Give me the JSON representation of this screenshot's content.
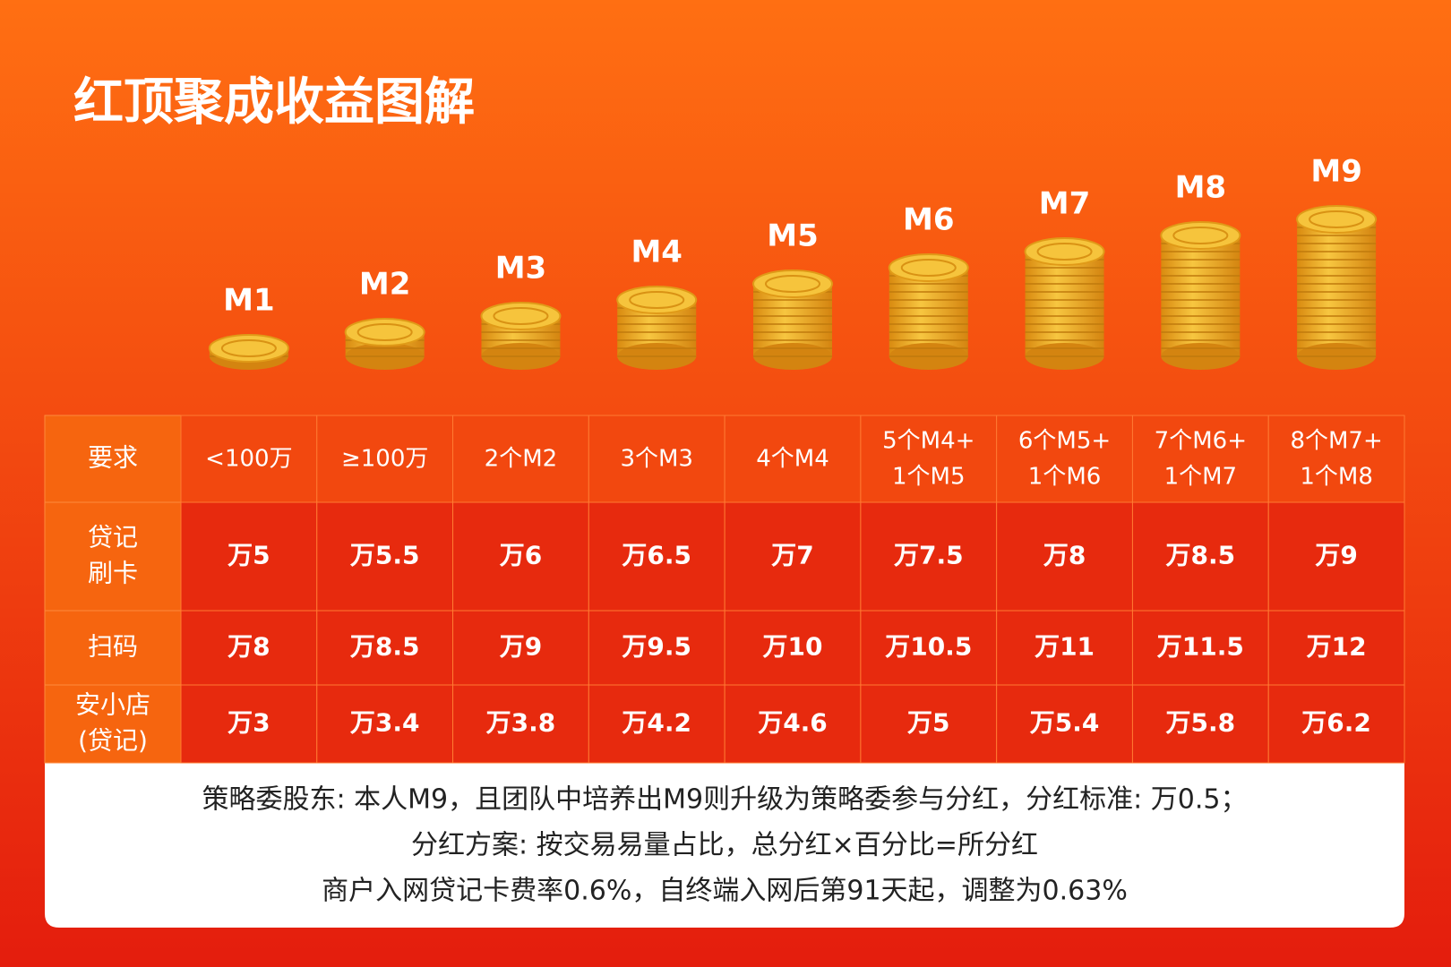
{
  "header": {
    "title": "红顶聚成收益图解"
  },
  "levels": [
    "M1",
    "M2",
    "M3",
    "M4",
    "M5",
    "M6",
    "M7",
    "M8",
    "M9"
  ],
  "table": {
    "rows": [
      {
        "label": [
          "要求"
        ],
        "cells": [
          [
            "<100万"
          ],
          [
            "≥100万"
          ],
          [
            "2个M2"
          ],
          [
            "3个M3"
          ],
          [
            "4个M4"
          ],
          [
            "5个M4+",
            "1个M5"
          ],
          [
            "6个M5+",
            "1个M6"
          ],
          [
            "7个M6+",
            "1个M7"
          ],
          [
            "8个M7+",
            "1个M8"
          ]
        ]
      },
      {
        "label": [
          "贷记",
          "刷卡"
        ],
        "cells": [
          [
            "万5"
          ],
          [
            "万5.5"
          ],
          [
            "万6"
          ],
          [
            "万6.5"
          ],
          [
            "万7"
          ],
          [
            "万7.5"
          ],
          [
            "万8"
          ],
          [
            "万8.5"
          ],
          [
            "万9"
          ]
        ]
      },
      {
        "label": [
          "扫码"
        ],
        "cells": [
          [
            "万8"
          ],
          [
            "万8.5"
          ],
          [
            "万9"
          ],
          [
            "万9.5"
          ],
          [
            "万10"
          ],
          [
            "万10.5"
          ],
          [
            "万11"
          ],
          [
            "万11.5"
          ],
          [
            "万12"
          ]
        ]
      },
      {
        "label": [
          "安小店",
          "(贷记)"
        ],
        "cells": [
          [
            "万3"
          ],
          [
            "万3.4"
          ],
          [
            "万3.8"
          ],
          [
            "万4.2"
          ],
          [
            "万4.6"
          ],
          [
            "万5"
          ],
          [
            "万5.4"
          ],
          [
            "万5.8"
          ],
          [
            "万6.2"
          ]
        ]
      }
    ]
  },
  "notes": [
    "策略委股东: 本人M9，且团队中培养出M9则升级为策略委参与分红，分红标准: 万0.5；",
    "分红方案: 按交易易量占比，总分红×百分比=所分红",
    "商户入网贷记卡费率0.6%，自终端入网后第91天起，调整为0.63%"
  ]
}
